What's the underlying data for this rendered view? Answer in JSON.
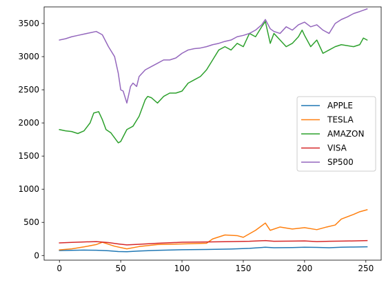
{
  "chart_data": {
    "type": "line",
    "title": "",
    "xlabel": "",
    "ylabel": "",
    "xlim": [
      -12.5,
      262.5
    ],
    "ylim": [
      -70,
      3750
    ],
    "x_ticks": [
      0,
      50,
      100,
      150,
      200,
      250
    ],
    "y_ticks": [
      0,
      500,
      1000,
      1500,
      2000,
      2500,
      3000,
      3500
    ],
    "grid": false,
    "legend_position": "center-right",
    "series": [
      {
        "name": "APPLE",
        "color": "#1f77b4",
        "x": [
          0,
          10,
          20,
          30,
          40,
          48,
          55,
          65,
          80,
          100,
          120,
          140,
          155,
          168,
          175,
          190,
          200,
          210,
          220,
          230,
          240,
          251
        ],
        "values": [
          75,
          78,
          82,
          80,
          72,
          60,
          58,
          68,
          78,
          88,
          92,
          98,
          108,
          125,
          118,
          120,
          125,
          122,
          118,
          125,
          128,
          132
        ]
      },
      {
        "name": "TESLA",
        "color": "#ff7f0e",
        "x": [
          0,
          10,
          20,
          30,
          35,
          45,
          55,
          65,
          80,
          100,
          120,
          125,
          135,
          145,
          150,
          160,
          168,
          172,
          180,
          190,
          200,
          210,
          218,
          225,
          230,
          240,
          245,
          251
        ],
        "values": [
          85,
          100,
          130,
          165,
          200,
          140,
          100,
          135,
          165,
          175,
          185,
          250,
          310,
          300,
          275,
          380,
          490,
          380,
          430,
          400,
          420,
          390,
          430,
          460,
          550,
          620,
          660,
          690
        ]
      },
      {
        "name": "AMAZON",
        "color": "#2ca02c",
        "x": [
          0,
          5,
          10,
          15,
          20,
          25,
          28,
          32,
          35,
          38,
          42,
          48,
          50,
          55,
          60,
          65,
          70,
          72,
          75,
          80,
          85,
          90,
          95,
          100,
          105,
          110,
          115,
          120,
          125,
          130,
          135,
          140,
          145,
          150,
          155,
          160,
          165,
          168,
          172,
          175,
          180,
          185,
          190,
          195,
          198,
          200,
          205,
          210,
          215,
          220,
          225,
          230,
          240,
          245,
          248,
          251
        ],
        "values": [
          1900,
          1880,
          1870,
          1840,
          1880,
          2000,
          2150,
          2170,
          2050,
          1900,
          1850,
          1700,
          1720,
          1900,
          1950,
          2100,
          2350,
          2400,
          2380,
          2300,
          2400,
          2450,
          2450,
          2480,
          2600,
          2650,
          2700,
          2800,
          2950,
          3100,
          3150,
          3100,
          3200,
          3150,
          3350,
          3300,
          3450,
          3530,
          3200,
          3350,
          3250,
          3150,
          3200,
          3300,
          3400,
          3320,
          3150,
          3250,
          3050,
          3100,
          3150,
          3180,
          3150,
          3180,
          3280,
          3250
        ]
      },
      {
        "name": "VISA",
        "color": "#d62728",
        "x": [
          0,
          10,
          20,
          30,
          40,
          48,
          55,
          65,
          80,
          100,
          120,
          140,
          155,
          168,
          175,
          190,
          200,
          210,
          220,
          230,
          240,
          251
        ],
        "values": [
          190,
          198,
          205,
          210,
          195,
          175,
          160,
          170,
          185,
          200,
          205,
          210,
          215,
          225,
          215,
          218,
          220,
          210,
          215,
          218,
          220,
          225
        ]
      },
      {
        "name": "SP500",
        "color": "#9467bd",
        "x": [
          0,
          5,
          10,
          15,
          20,
          25,
          30,
          35,
          40,
          45,
          48,
          50,
          52,
          55,
          58,
          60,
          63,
          65,
          70,
          75,
          80,
          85,
          90,
          95,
          100,
          105,
          110,
          115,
          120,
          125,
          130,
          135,
          140,
          145,
          150,
          155,
          160,
          165,
          168,
          172,
          175,
          180,
          185,
          190,
          195,
          200,
          205,
          210,
          215,
          220,
          225,
          230,
          235,
          240,
          245,
          248,
          251
        ],
        "values": [
          3250,
          3270,
          3300,
          3320,
          3340,
          3360,
          3380,
          3330,
          3150,
          3000,
          2750,
          2500,
          2480,
          2300,
          2550,
          2600,
          2550,
          2700,
          2800,
          2850,
          2900,
          2950,
          2950,
          2980,
          3050,
          3100,
          3120,
          3130,
          3150,
          3180,
          3200,
          3230,
          3250,
          3300,
          3320,
          3350,
          3400,
          3480,
          3560,
          3420,
          3380,
          3350,
          3450,
          3400,
          3480,
          3520,
          3450,
          3480,
          3400,
          3350,
          3500,
          3560,
          3600,
          3650,
          3680,
          3700,
          3720
        ]
      }
    ]
  }
}
